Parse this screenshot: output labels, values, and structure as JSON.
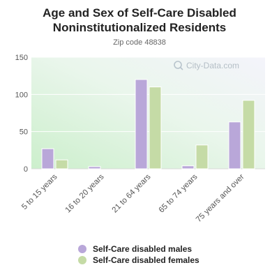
{
  "chart_data": {
    "type": "bar",
    "title": "Age and Sex of Self-Care Disabled Noninstitutionalized Residents",
    "subtitle": "Zip code 48838",
    "watermark": "City-Data.com",
    "categories": [
      "5 to 15 years",
      "16 to 20 years",
      "21 to 64 years",
      "65 to 74 years",
      "75 years and over"
    ],
    "series": [
      {
        "name": "Self-Care disabled males",
        "values": [
          27,
          3,
          120,
          4,
          63
        ],
        "color": "#b9a7d9"
      },
      {
        "name": "Self-Care disabled females",
        "values": [
          12,
          0,
          110,
          32,
          92
        ],
        "color": "#c5dba6"
      }
    ],
    "ylim": [
      0,
      150
    ],
    "yticks": [
      "0",
      "50",
      "100",
      "150"
    ],
    "grid": true,
    "legend_position": "bottom"
  }
}
